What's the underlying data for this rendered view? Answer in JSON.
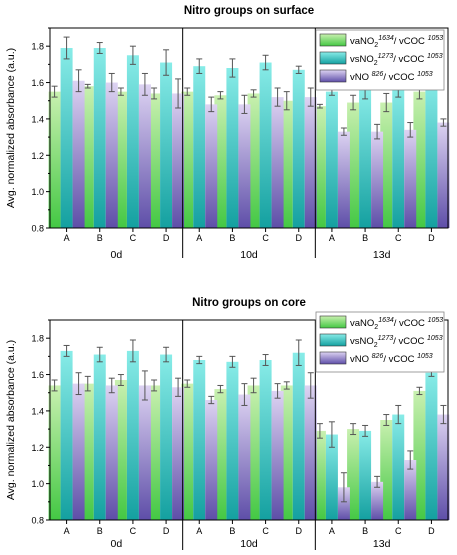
{
  "figure": {
    "colors": {
      "va": [
        "#c9f0b0",
        "#44c844"
      ],
      "vs": [
        "#88ece8",
        "#14a0a0"
      ],
      "vno": [
        "#ddd3f2",
        "#5e4ea8"
      ],
      "error_bar": "#555555",
      "axis": "#000000"
    }
  },
  "chart_data": [
    {
      "type": "bar",
      "title": "Nitro groups on surface",
      "ylabel": "Avg. normalized absorbance (a.u.)",
      "ylim": [
        0.8,
        1.9
      ],
      "yticks": [
        "0.8",
        "1.0",
        "1.2",
        "1.4",
        "1.6",
        "1.8"
      ],
      "categories": [
        "A",
        "B",
        "C",
        "D",
        "A",
        "B",
        "C",
        "D",
        "A",
        "B",
        "C",
        "D"
      ],
      "groups": [
        {
          "label": "0d",
          "categories": [
            "A",
            "B",
            "C",
            "D"
          ]
        },
        {
          "label": "10d",
          "categories": [
            "A",
            "B",
            "C",
            "D"
          ]
        },
        {
          "label": "13d",
          "categories": [
            "A",
            "B",
            "C",
            "D"
          ]
        }
      ],
      "legend_position": "top-right",
      "series": [
        {
          "name": "vaNO₂ 1634 / vCOC 1053",
          "legend": {
            "base": "vaNO",
            "sub": "2",
            "sup1": "1634",
            "mid": "/ vCOC ",
            "sup2": "1053"
          },
          "color_key": "va",
          "values": [
            1.55,
            1.58,
            1.55,
            1.54,
            1.55,
            1.53,
            1.54,
            1.5,
            1.47,
            1.49,
            1.49,
            1.55
          ],
          "errors": [
            0.03,
            0.01,
            0.02,
            0.03,
            0.02,
            0.02,
            0.02,
            0.05,
            0.01,
            0.04,
            0.05,
            0.04
          ]
        },
        {
          "name": "vsNO₂ 1273 / vCOC 1053",
          "legend": {
            "base": "vsNO",
            "sub": "2",
            "sup1": "1273",
            "mid": "/ vCOC ",
            "sup2": "1053"
          },
          "color_key": "vs",
          "values": [
            1.79,
            1.79,
            1.75,
            1.71,
            1.69,
            1.68,
            1.71,
            1.67,
            1.55,
            1.56,
            1.57,
            1.62
          ],
          "errors": [
            0.06,
            0.03,
            0.05,
            0.07,
            0.04,
            0.05,
            0.04,
            0.02,
            0.02,
            0.05,
            0.05,
            0.02
          ]
        },
        {
          "name": "vNO 826 / vCOC 1053",
          "legend": {
            "base": "vNO ",
            "sub": "",
            "sup1": "826",
            "mid": "/ vCOC ",
            "sup2": "1053"
          },
          "color_key": "vno",
          "values": [
            1.61,
            1.6,
            1.59,
            1.54,
            1.48,
            1.48,
            1.52,
            1.52,
            1.33,
            1.33,
            1.34,
            1.38
          ],
          "errors": [
            0.06,
            0.05,
            0.06,
            0.08,
            0.04,
            0.05,
            0.05,
            0.05,
            0.02,
            0.04,
            0.04,
            0.02
          ]
        }
      ]
    },
    {
      "type": "bar",
      "title": "Nitro groups on core",
      "ylabel": "Avg. normalized absorbance (a.u.)",
      "ylim": [
        0.8,
        1.9
      ],
      "yticks": [
        "0.8",
        "1.0",
        "1.2",
        "1.4",
        "1.6",
        "1.8"
      ],
      "categories": [
        "A",
        "B",
        "C",
        "D",
        "A",
        "B",
        "C",
        "D",
        "A",
        "B",
        "C",
        "D"
      ],
      "groups": [
        {
          "label": "0d",
          "categories": [
            "A",
            "B",
            "C",
            "D"
          ]
        },
        {
          "label": "10d",
          "categories": [
            "A",
            "B",
            "C",
            "D"
          ]
        },
        {
          "label": "13d",
          "categories": [
            "A",
            "B",
            "C",
            "D"
          ]
        }
      ],
      "legend_position": "top-right",
      "series": [
        {
          "name": "vaNO₂ 1634 / vCOC 1053",
          "legend": {
            "base": "vaNO",
            "sub": "2",
            "sup1": "1634",
            "mid": "/ vCOC ",
            "sup2": "1053"
          },
          "color_key": "va",
          "values": [
            1.54,
            1.55,
            1.57,
            1.54,
            1.55,
            1.52,
            1.54,
            1.54,
            1.29,
            1.3,
            1.35,
            1.51
          ],
          "errors": [
            0.03,
            0.04,
            0.03,
            0.03,
            0.02,
            0.02,
            0.04,
            0.02,
            0.04,
            0.03,
            0.03,
            0.02
          ]
        },
        {
          "name": "vsNO₂ 1273 / vCOC 1053",
          "legend": {
            "base": "vsNO",
            "sub": "2",
            "sup1": "1273",
            "mid": "/ vCOC ",
            "sup2": "1053"
          },
          "color_key": "vs",
          "values": [
            1.73,
            1.71,
            1.73,
            1.71,
            1.68,
            1.67,
            1.68,
            1.72,
            1.27,
            1.29,
            1.38,
            1.61
          ],
          "errors": [
            0.03,
            0.04,
            0.06,
            0.04,
            0.02,
            0.03,
            0.03,
            0.07,
            0.07,
            0.03,
            0.05,
            0.02
          ]
        },
        {
          "name": "vNO 826 / vCOC 1053",
          "legend": {
            "base": "vNO ",
            "sub": "",
            "sup1": "826",
            "mid": "/ vCOC ",
            "sup2": "1053"
          },
          "color_key": "vno",
          "values": [
            1.55,
            1.54,
            1.54,
            1.53,
            1.46,
            1.49,
            1.51,
            1.54,
            0.98,
            1.01,
            1.13,
            1.38
          ],
          "errors": [
            0.06,
            0.04,
            0.08,
            0.05,
            0.02,
            0.06,
            0.04,
            0.07,
            0.08,
            0.03,
            0.05,
            0.05
          ]
        }
      ]
    }
  ]
}
